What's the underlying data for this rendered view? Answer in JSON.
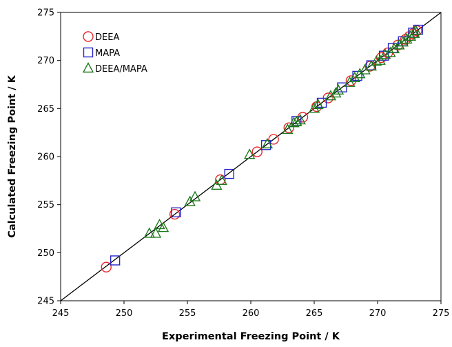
{
  "chart_data": {
    "type": "scatter",
    "title": "",
    "xlabel": "Experimental Freezing Point / K",
    "ylabel": "Calculated Freezing Point / K",
    "xlim": [
      245,
      275
    ],
    "ylim": [
      245,
      275
    ],
    "xticks": [
      245,
      250,
      255,
      260,
      265,
      270,
      275
    ],
    "yticks": [
      245,
      250,
      255,
      260,
      265,
      270,
      275
    ],
    "grid": false,
    "legend_position": "top-left",
    "parity_line": {
      "from": [
        245,
        245
      ],
      "to": [
        275,
        275
      ],
      "color": "#000000"
    },
    "series": [
      {
        "name": "DEEA",
        "marker": "circle",
        "color": "#e8262a",
        "points": [
          [
            248.6,
            248.5
          ],
          [
            254.0,
            254.0
          ],
          [
            257.6,
            257.6
          ],
          [
            260.5,
            260.5
          ],
          [
            261.8,
            261.8
          ],
          [
            263.0,
            263.0
          ],
          [
            264.1,
            264.1
          ],
          [
            265.2,
            265.2
          ],
          [
            266.1,
            266.1
          ],
          [
            267.9,
            267.9
          ],
          [
            269.4,
            269.4
          ],
          [
            270.3,
            270.3
          ],
          [
            270.8,
            270.8
          ],
          [
            271.6,
            271.6
          ],
          [
            272.2,
            272.2
          ],
          [
            272.5,
            272.5
          ],
          [
            272.8,
            272.8
          ],
          [
            273.1,
            273.1
          ]
        ]
      },
      {
        "name": "MAPA",
        "marker": "square",
        "color": "#2424c8",
        "points": [
          [
            249.3,
            249.2
          ],
          [
            254.1,
            254.2
          ],
          [
            258.3,
            258.2
          ],
          [
            261.2,
            261.2
          ],
          [
            263.6,
            263.7
          ],
          [
            265.6,
            265.6
          ],
          [
            267.2,
            267.2
          ],
          [
            268.4,
            268.4
          ],
          [
            269.5,
            269.5
          ],
          [
            270.5,
            270.5
          ],
          [
            271.2,
            271.3
          ],
          [
            272.0,
            272.0
          ],
          [
            272.8,
            272.9
          ],
          [
            273.2,
            273.2
          ]
        ]
      },
      {
        "name": "DEEA/MAPA",
        "marker": "triangle",
        "color": "#1d7a1d",
        "points": [
          [
            252.0,
            252.0
          ],
          [
            252.5,
            252.0
          ],
          [
            252.8,
            252.9
          ],
          [
            253.1,
            252.6
          ],
          [
            255.2,
            255.3
          ],
          [
            255.6,
            255.8
          ],
          [
            257.3,
            257.0
          ],
          [
            257.7,
            257.5
          ],
          [
            259.9,
            260.2
          ],
          [
            261.3,
            261.3
          ],
          [
            262.9,
            262.8
          ],
          [
            263.4,
            263.5
          ],
          [
            263.6,
            263.6
          ],
          [
            263.9,
            263.8
          ],
          [
            265.0,
            265.0
          ],
          [
            265.3,
            265.4
          ],
          [
            266.3,
            266.3
          ],
          [
            266.7,
            266.6
          ],
          [
            266.9,
            266.9
          ],
          [
            267.8,
            267.7
          ],
          [
            268.2,
            268.2
          ],
          [
            268.6,
            268.6
          ],
          [
            269.0,
            269.0
          ],
          [
            269.5,
            269.4
          ],
          [
            269.9,
            269.9
          ],
          [
            270.2,
            270.0
          ],
          [
            270.6,
            270.6
          ],
          [
            271.0,
            270.8
          ],
          [
            271.3,
            271.2
          ],
          [
            271.7,
            271.6
          ],
          [
            272.0,
            271.9
          ],
          [
            272.3,
            272.2
          ],
          [
            272.6,
            272.5
          ],
          [
            272.9,
            272.8
          ],
          [
            273.0,
            273.1
          ]
        ]
      }
    ]
  }
}
